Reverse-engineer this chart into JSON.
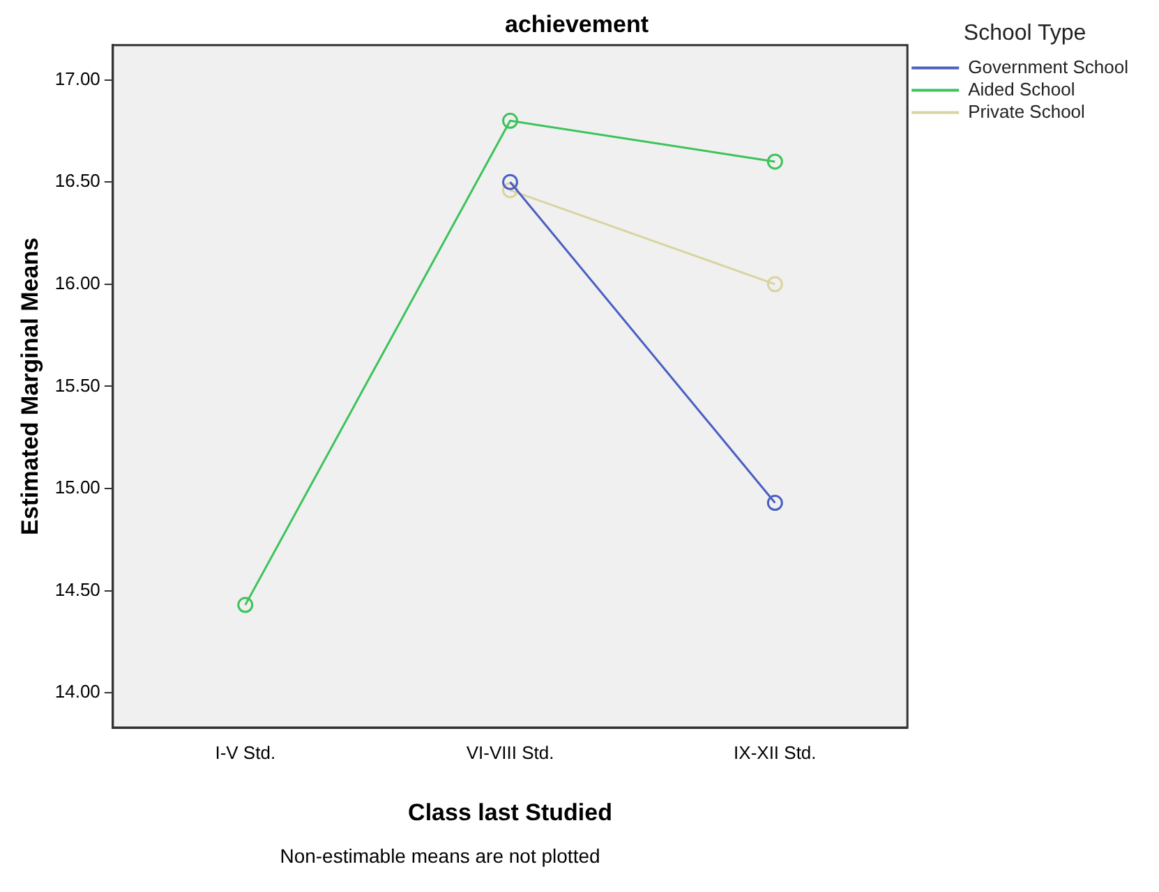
{
  "chart_data": {
    "type": "line",
    "title": "achievement",
    "xlabel": "Class last Studied",
    "ylabel": "Estimated Marginal Means",
    "legend_title": "School Type",
    "categories": [
      "I-V Std.",
      "VI-VIII Std.",
      "IX-XII Std."
    ],
    "series": [
      {
        "name": "Government School",
        "color": "#4a5fc1",
        "values": [
          null,
          16.5,
          14.93
        ]
      },
      {
        "name": "Aided School",
        "color": "#3cc35a",
        "values": [
          14.43,
          16.8,
          16.6
        ]
      },
      {
        "name": "Private School",
        "color": "#d8d4a0",
        "values": [
          null,
          16.46,
          16.0
        ]
      }
    ],
    "ylim": [
      13.83,
      17.17
    ],
    "yticks": [
      {
        "value": 14,
        "label": "14.00"
      },
      {
        "value": 14.5,
        "label": "14.50"
      },
      {
        "value": 15,
        "label": "15.00"
      },
      {
        "value": 15.5,
        "label": "15.50"
      },
      {
        "value": 16,
        "label": "16.00"
      },
      {
        "value": 16.5,
        "label": "16.50"
      },
      {
        "value": 17,
        "label": "17.00"
      }
    ],
    "grid": false,
    "legend": "top right",
    "marker": "circle",
    "line_style": "solid",
    "annotations": [
      "Non-estimable means are not plotted"
    ]
  }
}
